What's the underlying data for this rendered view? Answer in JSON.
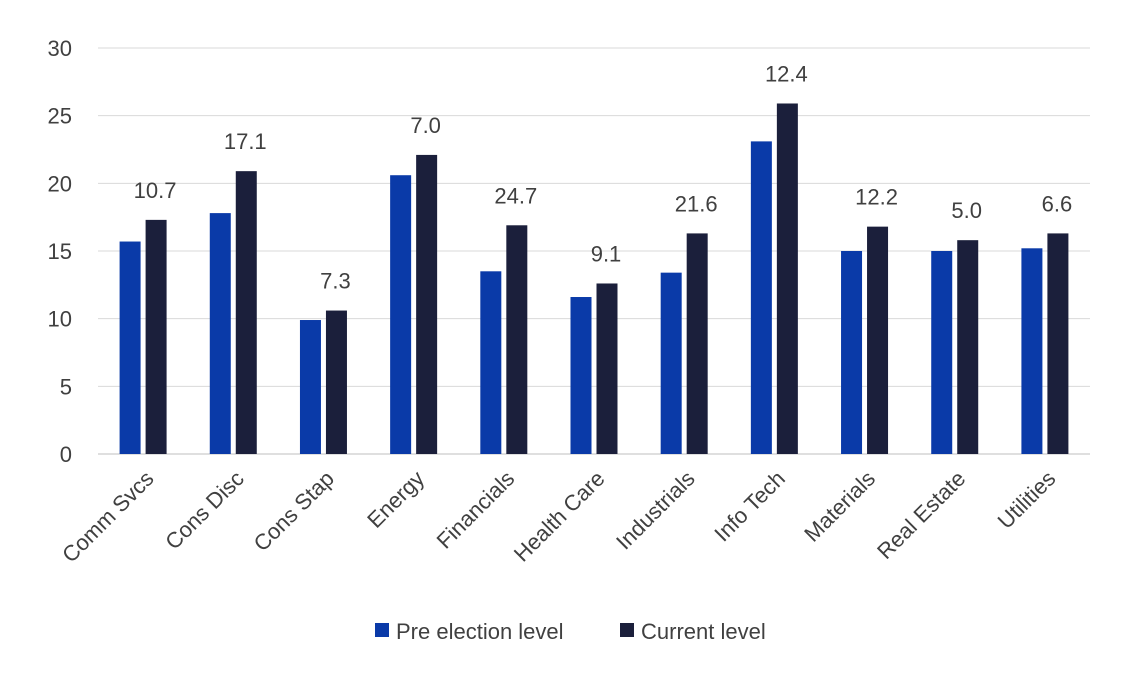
{
  "chart_data": {
    "type": "bar",
    "categories": [
      "Comm Svcs",
      "Cons Disc",
      "Cons Stap",
      "Energy",
      "Financials",
      "Health Care",
      "Industrials",
      "Info Tech",
      "Materials",
      "Real Estate",
      "Utilities"
    ],
    "series": [
      {
        "name": "Pre election level",
        "color": "#0a3aa8",
        "values": [
          15.7,
          17.8,
          9.9,
          20.6,
          13.5,
          11.6,
          13.4,
          23.1,
          15.0,
          15.0,
          15.2
        ]
      },
      {
        "name": "Current level",
        "color": "#1b1f3b",
        "values": [
          17.3,
          20.9,
          10.6,
          22.1,
          16.9,
          12.6,
          16.3,
          25.9,
          16.8,
          15.8,
          16.3
        ]
      }
    ],
    "data_labels": [
      "10.7",
      "17.1",
      "7.3",
      "7.0",
      "24.7",
      "9.1",
      "21.6",
      "12.4",
      "12.2",
      "5.0",
      "6.6"
    ],
    "ylim": [
      0,
      30
    ],
    "yticks": [
      "0",
      "5",
      "10",
      "15",
      "20",
      "25",
      "30"
    ],
    "grid": true,
    "legend_position": "bottom",
    "title": "",
    "xlabel": "",
    "ylabel": ""
  }
}
